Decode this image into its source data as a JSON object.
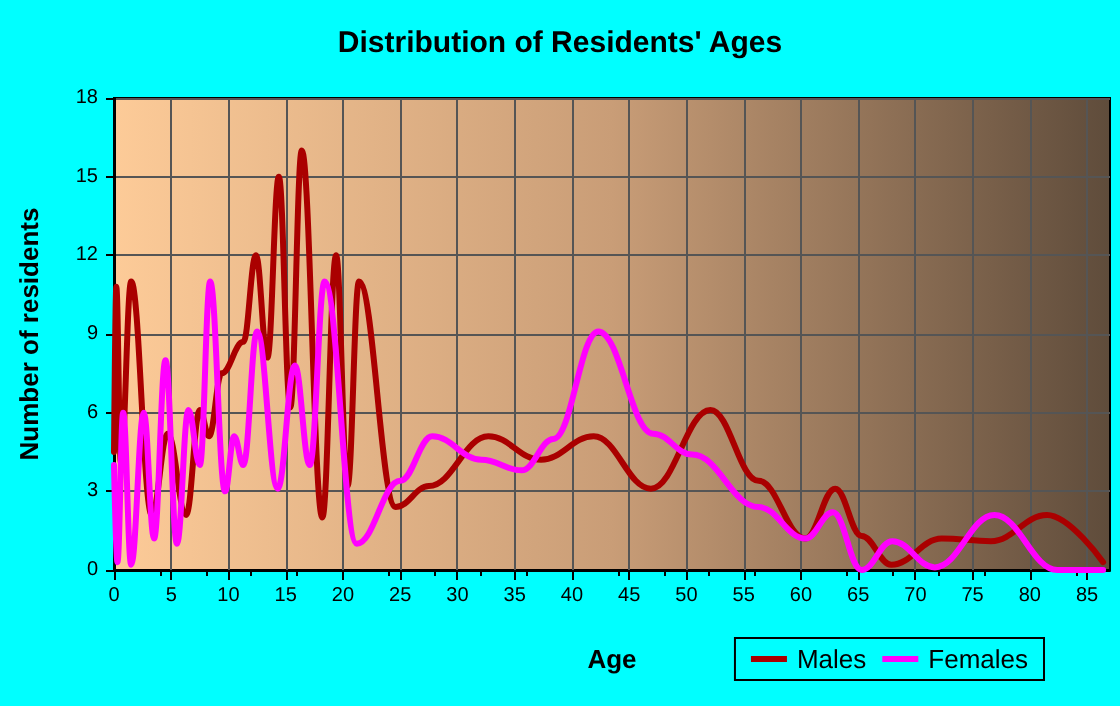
{
  "chart_data": {
    "type": "line",
    "title": "Distribution of Residents' Ages",
    "xlabel": "Age",
    "ylabel": "Number of residents",
    "xlim": [
      0,
      87
    ],
    "xticks": [
      0,
      5,
      10,
      15,
      20,
      25,
      30,
      35,
      40,
      45,
      50,
      55,
      60,
      65,
      70,
      75,
      80,
      85
    ],
    "ylim": [
      0,
      18
    ],
    "yticks": [
      0,
      3,
      6,
      9,
      12,
      15,
      18
    ],
    "grid": true,
    "legend": "bottom right",
    "marker": "none",
    "series": [
      {
        "name": "Males",
        "color": "#aa0000",
        "x": [
          0,
          0.2,
          0.6,
          1.5,
          3.3,
          4.7,
          6.3,
          7.5,
          8.3,
          9.4,
          11.3,
          12.4,
          13.4,
          14.4,
          15.4,
          16.4,
          18.2,
          19.4,
          20.4,
          21.4,
          24.6,
          27.5,
          32.7,
          37.3,
          41.9,
          46.9,
          52.1,
          56.3,
          60.4,
          63,
          65.3,
          67.9,
          72.3,
          76.6,
          81.5,
          86.4
        ],
        "values": [
          4.5,
          10.8,
          4.1,
          11,
          2.1,
          5.2,
          2.1,
          6.1,
          5.1,
          7.5,
          8.7,
          12,
          8.1,
          15,
          6.2,
          16,
          2,
          12,
          3.2,
          11,
          2.4,
          3.2,
          5.1,
          4.2,
          5.1,
          3.1,
          6.1,
          3.4,
          1.2,
          3.1,
          1.3,
          0.2,
          1.2,
          1.1,
          2.1,
          0.3
        ]
      },
      {
        "name": "Females",
        "color": "#ff00ff",
        "x": [
          0,
          0.3,
          0.8,
          1.5,
          2.6,
          3.5,
          4.5,
          5.5,
          6.5,
          7.5,
          8.4,
          9.7,
          10.5,
          11.3,
          12.5,
          14.3,
          15.8,
          17.1,
          18.4,
          21.2,
          25,
          27.8,
          32.1,
          35.6,
          38.4,
          42.3,
          47.1,
          50.5,
          56.3,
          60.4,
          62.8,
          65.3,
          68,
          71.7,
          76.9,
          82.4,
          86.4
        ],
        "values": [
          4,
          0.3,
          6,
          0.2,
          6,
          1.2,
          8,
          1,
          6.1,
          4,
          11,
          3,
          5.1,
          4,
          9.1,
          3.1,
          7.8,
          4,
          11,
          1,
          3.4,
          5.1,
          4.2,
          3.8,
          5,
          9.1,
          5.2,
          4.4,
          2.4,
          1.2,
          2.2,
          0,
          1.1,
          0.1,
          2.1,
          0,
          0
        ]
      }
    ]
  }
}
